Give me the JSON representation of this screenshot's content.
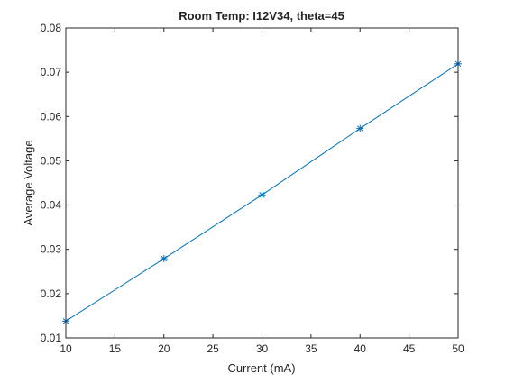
{
  "chart_data": {
    "type": "line",
    "title": "Room Temp: I12V34, theta=45",
    "xlabel": "Current (mA)",
    "ylabel": "Average Voltage",
    "xlim": [
      10,
      50
    ],
    "ylim": [
      0.01,
      0.08
    ],
    "x_ticks": [
      "10",
      "15",
      "20",
      "25",
      "30",
      "35",
      "40",
      "45",
      "50"
    ],
    "y_ticks": [
      "0.01",
      "0.02",
      "0.03",
      "0.04",
      "0.05",
      "0.06",
      "0.07",
      "0.08"
    ],
    "grid": false,
    "series": [
      {
        "marker": "asterisk",
        "color": "#0072BD",
        "x": [
          10,
          20,
          30,
          40,
          50
        ],
        "y": [
          0.0138,
          0.0279,
          0.0423,
          0.0573,
          0.0719
        ]
      }
    ]
  }
}
